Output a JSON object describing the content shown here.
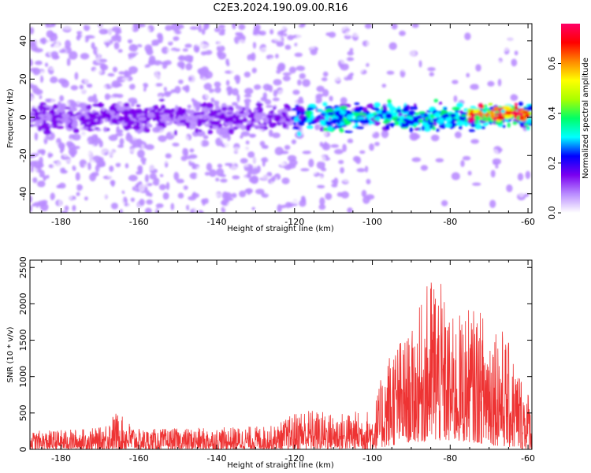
{
  "figure_title": "C2E3.2024.190.09.00.R16",
  "chart_data": [
    {
      "type": "heatmap",
      "xlabel": "Height of straight line (km)",
      "ylabel": "Frequency (Hz)",
      "xlim": [
        -188,
        -59
      ],
      "ylim": [
        -50,
        49
      ],
      "xticks": [
        -180,
        -160,
        -140,
        -120,
        -100,
        -80,
        -60
      ],
      "yticks": [
        -40,
        -20,
        0,
        20,
        40
      ],
      "colorbar": {
        "label": "Normalized spectral amplitude",
        "range": [
          0,
          0.76
        ],
        "ticks": [
          0.0,
          0.2,
          0.4,
          0.6
        ],
        "colormap": [
          "#ffffff",
          "#b98cff",
          "#7a00f0",
          "#0000ff",
          "#00ffff",
          "#00ff66",
          "#aaff00",
          "#ffff00",
          "#ff8800",
          "#ff0000",
          "#ff0066"
        ]
      },
      "description_bands": [
        {
          "x_range": [
            -188,
            -120
          ],
          "y_center": 0,
          "level": 0.15
        },
        {
          "x_range": [
            -120,
            -59
          ],
          "y_center": 0,
          "level": 0.35
        },
        {
          "x_range": [
            -75,
            -60
          ],
          "y_center": 2,
          "level": 0.7
        }
      ]
    },
    {
      "type": "line",
      "xlabel": "Height of straight line (km)",
      "ylabel": "SNR (10 * v/v)",
      "xlim": [
        -188,
        -59
      ],
      "ylim": [
        0,
        2600
      ],
      "xticks": [
        -180,
        -160,
        -140,
        -120,
        -100,
        -80,
        -60
      ],
      "yticks": [
        0,
        500,
        1000,
        1500,
        2000,
        2500
      ],
      "series": [
        {
          "color": "#ee3333",
          "envelope": [
            {
              "x": -188,
              "low": 0,
              "high": 250
            },
            {
              "x": -180,
              "low": 0,
              "high": 270
            },
            {
              "x": -170,
              "low": 0,
              "high": 300
            },
            {
              "x": -166,
              "low": 0,
              "high": 520
            },
            {
              "x": -160,
              "low": 0,
              "high": 280
            },
            {
              "x": -140,
              "low": 0,
              "high": 300
            },
            {
              "x": -125,
              "low": 0,
              "high": 330
            },
            {
              "x": -118,
              "low": 0,
              "high": 580
            },
            {
              "x": -110,
              "low": 0,
              "high": 500
            },
            {
              "x": -100,
              "low": 0,
              "high": 550
            },
            {
              "x": -95,
              "low": 50,
              "high": 1500
            },
            {
              "x": -90,
              "low": 100,
              "high": 1600
            },
            {
              "x": -84,
              "low": 100,
              "high": 2600
            },
            {
              "x": -80,
              "low": 100,
              "high": 1800
            },
            {
              "x": -75,
              "low": 100,
              "high": 1950
            },
            {
              "x": -68,
              "low": 50,
              "high": 1850
            },
            {
              "x": -62,
              "low": 0,
              "high": 1100
            },
            {
              "x": -59,
              "low": 0,
              "high": 700
            }
          ]
        }
      ]
    }
  ]
}
